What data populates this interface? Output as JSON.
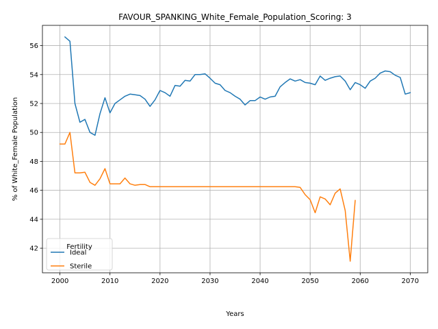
{
  "chart_data": {
    "type": "line",
    "title": "FAVOUR_SPANKING_White_Female_Population_Scoring: 3",
    "xlabel": "Years",
    "ylabel": "% of White_Female Population",
    "xlim": [
      1996.5,
      2073.5
    ],
    "ylim": [
      40.3,
      57.4
    ],
    "xticks": [
      2000,
      2010,
      2020,
      2030,
      2040,
      2050,
      2060,
      2070
    ],
    "yticks": [
      42,
      44,
      46,
      48,
      50,
      52,
      54,
      56
    ],
    "grid": true,
    "legend": {
      "title": "Fertility",
      "placement": "lower-left"
    },
    "series": [
      {
        "name": "Ideal",
        "color": "#1f77b4",
        "x": [
          2001,
          2002,
          2003,
          2004,
          2005,
          2006,
          2007,
          2008,
          2009,
          2010,
          2011,
          2012,
          2013,
          2014,
          2015,
          2016,
          2017,
          2018,
          2019,
          2020,
          2021,
          2022,
          2023,
          2024,
          2025,
          2026,
          2027,
          2028,
          2029,
          2030,
          2031,
          2032,
          2033,
          2034,
          2035,
          2036,
          2037,
          2038,
          2039,
          2040,
          2041,
          2042,
          2043,
          2044,
          2045,
          2046,
          2047,
          2048,
          2049,
          2050,
          2051,
          2052,
          2053,
          2054,
          2055,
          2056,
          2057,
          2058,
          2059,
          2060,
          2061,
          2062,
          2063,
          2064,
          2065,
          2066,
          2067,
          2068,
          2069,
          2070
        ],
        "values": [
          56.6,
          56.3,
          52.0,
          50.7,
          50.9,
          50.0,
          49.8,
          51.3,
          52.4,
          51.35,
          52.0,
          52.25,
          52.5,
          52.65,
          52.6,
          52.55,
          52.3,
          51.8,
          52.25,
          52.9,
          52.75,
          52.5,
          53.25,
          53.2,
          53.6,
          53.55,
          54.0,
          54.0,
          54.05,
          53.75,
          53.4,
          53.3,
          52.9,
          52.75,
          52.5,
          52.3,
          51.9,
          52.2,
          52.2,
          52.45,
          52.3,
          52.45,
          52.5,
          53.15,
          53.45,
          53.7,
          53.55,
          53.65,
          53.45,
          53.4,
          53.3,
          53.9,
          53.6,
          53.75,
          53.85,
          53.9,
          53.55,
          52.95,
          53.45,
          53.3,
          53.05,
          53.55,
          53.75,
          54.1,
          54.25,
          54.2,
          53.95,
          53.8,
          52.65,
          52.75
        ]
      },
      {
        "name": "Sterile",
        "color": "#ff7f0e",
        "x": [
          2000,
          2001,
          2002,
          2003,
          2004,
          2005,
          2006,
          2007,
          2008,
          2009,
          2010,
          2011,
          2012,
          2013,
          2014,
          2015,
          2016,
          2017,
          2018,
          2019,
          2020,
          2021,
          2022,
          2023,
          2024,
          2025,
          2026,
          2027,
          2028,
          2029,
          2030,
          2031,
          2032,
          2033,
          2034,
          2035,
          2036,
          2037,
          2038,
          2039,
          2040,
          2041,
          2042,
          2043,
          2044,
          2045,
          2046,
          2047,
          2048,
          2049,
          2050,
          2051,
          2052,
          2053,
          2054,
          2055,
          2056,
          2057,
          2058,
          2059
        ],
        "values": [
          49.2,
          49.2,
          50.0,
          47.2,
          47.2,
          47.25,
          46.55,
          46.35,
          46.8,
          47.5,
          46.45,
          46.45,
          46.45,
          46.85,
          46.45,
          46.35,
          46.4,
          46.4,
          46.25,
          46.25,
          46.25,
          46.25,
          46.25,
          46.25,
          46.25,
          46.25,
          46.25,
          46.25,
          46.25,
          46.25,
          46.25,
          46.25,
          46.25,
          46.25,
          46.25,
          46.25,
          46.25,
          46.25,
          46.25,
          46.25,
          46.25,
          46.25,
          46.25,
          46.25,
          46.25,
          46.25,
          46.25,
          46.25,
          46.2,
          45.7,
          45.35,
          44.45,
          45.55,
          45.4,
          45.0,
          45.8,
          46.1,
          44.6,
          41.1,
          45.3
        ]
      }
    ]
  }
}
